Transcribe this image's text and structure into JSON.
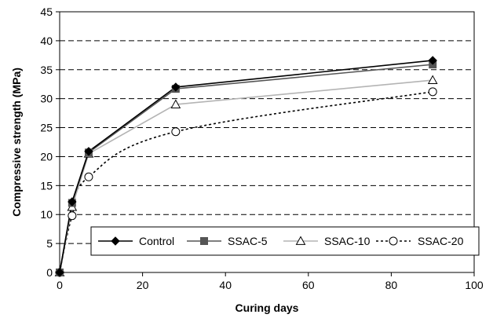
{
  "chart_data": {
    "type": "line",
    "title": "",
    "xlabel": "Curing days",
    "ylabel": "Compressive strength (MPa)",
    "xlim": [
      0,
      100
    ],
    "ylim": [
      0,
      45
    ],
    "x_ticks": [
      "0",
      "20",
      "40",
      "60",
      "80",
      "100"
    ],
    "y_ticks": [
      "0",
      "5",
      "10",
      "15",
      "20",
      "25",
      "30",
      "35",
      "40",
      "45"
    ],
    "grid": "horizontal dashed",
    "legend_position": "bottom-right",
    "x": [
      0,
      3,
      7,
      28,
      90
    ],
    "series": [
      {
        "name": "Control",
        "values": [
          0,
          12.2,
          20.9,
          32.0,
          36.6
        ],
        "color": "#000000",
        "marker": "diamond-filled",
        "line": "solid"
      },
      {
        "name": "SSAC-5",
        "values": [
          0,
          12.0,
          20.7,
          31.7,
          35.9
        ],
        "color": "#555555",
        "marker": "square-filled",
        "line": "solid"
      },
      {
        "name": "SSAC-10",
        "values": [
          0,
          11.3,
          20.5,
          29.0,
          33.2
        ],
        "color": "#b4b4b4",
        "marker": "triangle-open",
        "line": "solid"
      },
      {
        "name": "SSAC-20",
        "values": [
          0,
          9.8,
          16.5,
          24.3,
          31.2
        ],
        "color": "#000000",
        "marker": "circle-open",
        "line": "dotted"
      }
    ]
  }
}
